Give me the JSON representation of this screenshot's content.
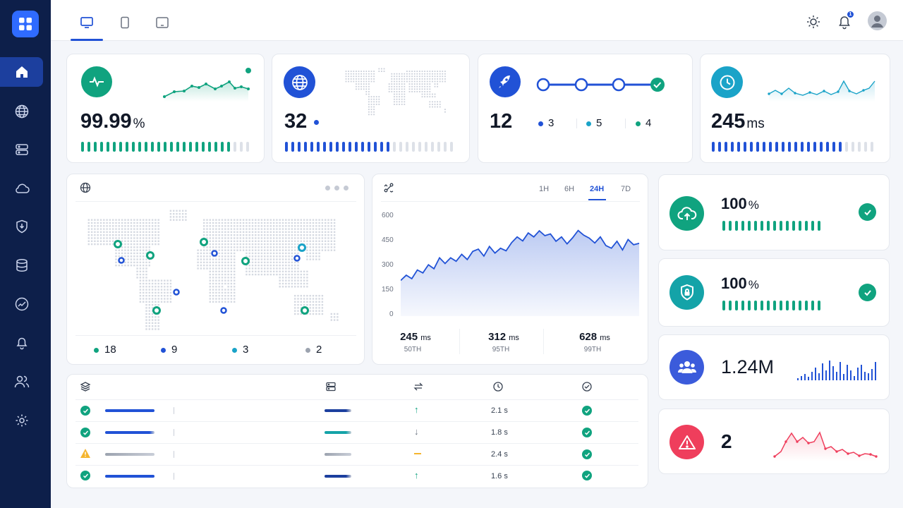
{
  "nav": {
    "logo_icon": "grid-icon",
    "items": [
      "home-icon",
      "globe-icon",
      "server-icon",
      "cloud-icon",
      "shield-icon",
      "database-icon",
      "activity-icon",
      "bell-icon",
      "users-icon",
      "gear-icon"
    ]
  },
  "topbar": {
    "tabs": [
      "desktop-icon",
      "tablet-icon",
      "tablet-landscape-icon"
    ],
    "notification_count": "1",
    "icons": [
      "sun-icon",
      "bell-icon",
      "avatar"
    ]
  },
  "kpi": {
    "uptime": {
      "value": "99.99",
      "unit": "%",
      "color": "#10a37f"
    },
    "regions": {
      "value": "32",
      "color": "#2152d6"
    },
    "deployments": {
      "value": "12",
      "stage1": "3",
      "stage2": "5",
      "stage3": "4"
    },
    "latency": {
      "value": "245",
      "unit": "ms",
      "color": "#1aa3c8"
    }
  },
  "map_card": {
    "legend": [
      {
        "value": "18",
        "color": "#10a37f"
      },
      {
        "value": "9",
        "color": "#2152d6"
      },
      {
        "value": "3",
        "color": "#1aa3c8"
      },
      {
        "value": "2",
        "color": "#9ca3af"
      }
    ]
  },
  "latency_chart": {
    "timeframes": [
      "1H",
      "6H",
      "24H",
      "7D"
    ],
    "active": "24H",
    "stats": [
      {
        "value": "245",
        "unit": "ms",
        "label": "50TH"
      },
      {
        "value": "312",
        "unit": "ms",
        "label": "95TH"
      },
      {
        "value": "628",
        "unit": "ms",
        "label": "99TH"
      }
    ]
  },
  "chart_data": {
    "type": "area",
    "ylim": [
      0,
      600
    ],
    "yticks": [
      "0",
      "150",
      "300",
      "450",
      "600"
    ],
    "values": [
      205,
      235,
      215,
      265,
      248,
      295,
      272,
      335,
      302,
      335,
      315,
      355,
      325,
      372,
      385,
      345,
      400,
      362,
      390,
      375,
      422,
      455,
      432,
      478,
      455,
      490,
      462,
      472,
      430,
      455,
      415,
      450,
      492,
      465,
      448,
      420,
      455,
      405,
      390,
      430,
      380,
      440,
      410,
      418
    ]
  },
  "health": [
    {
      "value": "100",
      "unit": "%",
      "icon": "cloud-upload-icon",
      "color": "#10a37f",
      "status": "check-icon"
    },
    {
      "value": "100",
      "unit": "%",
      "icon": "shield-lock-icon",
      "color": "#14a3a8",
      "status": "check-icon"
    },
    {
      "value": "1.24M",
      "icon": "users-icon",
      "color": "#3b5bdb"
    },
    {
      "value": "2",
      "icon": "warning-icon",
      "color": "#ef3e5c"
    }
  ],
  "table": {
    "header_icons": [
      "layers-icon",
      "server-icon",
      "transfer-icon",
      "clock-icon",
      "check-circle-icon"
    ],
    "rows": [
      {
        "status": "ok",
        "time": "2.1 s",
        "arrow": "up"
      },
      {
        "status": "ok",
        "time": "1.8 s",
        "arrow": "down"
      },
      {
        "status": "warn",
        "time": "2.4 s",
        "arrow": "flat"
      },
      {
        "status": "ok",
        "time": "1.6 s",
        "arrow": "up"
      }
    ]
  }
}
